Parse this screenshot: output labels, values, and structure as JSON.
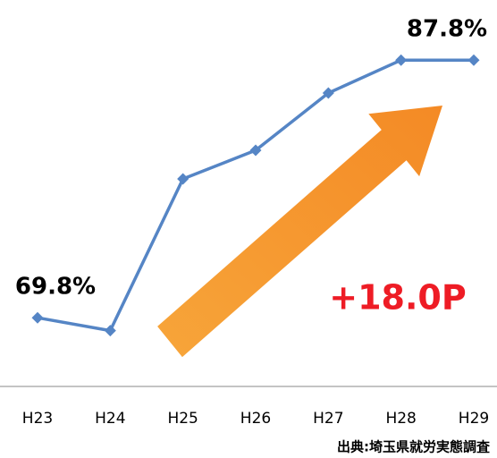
{
  "chart_data": {
    "type": "line",
    "categories": [
      "H23",
      "H24",
      "H25",
      "H26",
      "H27",
      "H28",
      "H29"
    ],
    "series": [
      {
        "color": "#5585c5",
        "values": [
          69.8,
          68.9,
          79.5,
          81.5,
          85.5,
          87.8,
          87.8
        ],
        "value_labels": [
          "69.8%",
          null,
          null,
          null,
          null,
          null,
          "87.8%"
        ]
      }
    ],
    "ylim": [
      65,
      92
    ],
    "annotations": [
      "+18.0P"
    ],
    "source": "出典:埼玉県就労実態調査"
  }
}
